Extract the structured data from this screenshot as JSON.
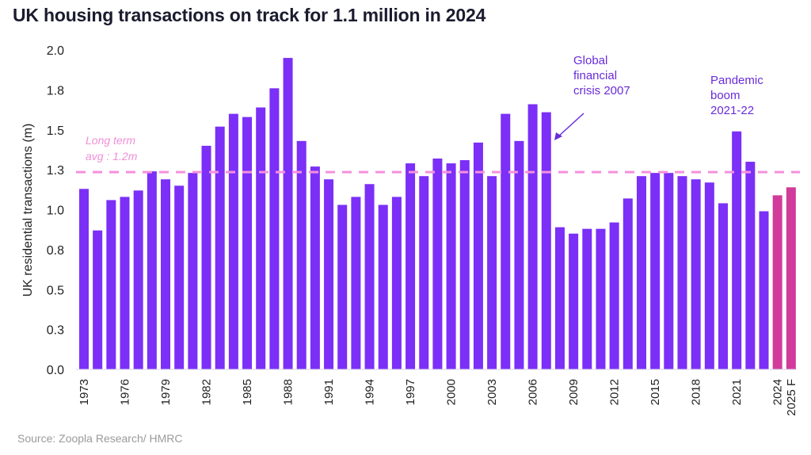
{
  "chart_data": {
    "type": "bar",
    "title": "UK housing transactions on track for 1.1 million in 2024",
    "xlabel": "",
    "ylabel": "UK residential transactions (m)",
    "ylim": [
      0,
      2.0
    ],
    "yticks": [
      0.0,
      0.25,
      0.5,
      0.75,
      1.0,
      1.25,
      1.5,
      1.75,
      2.0
    ],
    "ytick_labels": [
      "0.0",
      "0.3",
      "0.5",
      "0.8",
      "1.0",
      "1.3",
      "1.5",
      "1.8",
      "2.0"
    ],
    "categories": [
      "1973",
      "1974",
      "1975",
      "1976",
      "1977",
      "1978",
      "1979",
      "1980",
      "1981",
      "1982",
      "1983",
      "1984",
      "1985",
      "1986",
      "1987",
      "1988",
      "1989",
      "1990",
      "1991",
      "1992",
      "1993",
      "1994",
      "1995",
      "1996",
      "1997",
      "1998",
      "1999",
      "2000",
      "2001",
      "2002",
      "2003",
      "2004",
      "2005",
      "2006",
      "2007",
      "2008",
      "2009",
      "2010",
      "2011",
      "2012",
      "2013",
      "2014",
      "2015",
      "2016",
      "2017",
      "2018",
      "2019",
      "2020",
      "2021",
      "2022",
      "2023",
      "2024",
      "2025 F"
    ],
    "xtick_labels": [
      "1973",
      "1976",
      "1979",
      "1982",
      "1985",
      "1988",
      "1991",
      "1994",
      "1997",
      "2000",
      "2003",
      "2006",
      "2009",
      "2012",
      "2015",
      "2018",
      "2021",
      "2024",
      "2025 F"
    ],
    "values": [
      1.13,
      0.87,
      1.06,
      1.08,
      1.12,
      1.24,
      1.19,
      1.15,
      1.23,
      1.4,
      1.52,
      1.6,
      1.58,
      1.64,
      1.76,
      1.95,
      1.43,
      1.27,
      1.19,
      1.03,
      1.08,
      1.16,
      1.03,
      1.08,
      1.29,
      1.21,
      1.32,
      1.29,
      1.31,
      1.42,
      1.21,
      1.6,
      1.43,
      1.66,
      1.61,
      0.89,
      0.85,
      0.88,
      0.88,
      0.92,
      1.07,
      1.21,
      1.23,
      1.23,
      1.21,
      1.19,
      1.17,
      1.04,
      1.49,
      1.3,
      0.99,
      1.09,
      1.14
    ],
    "highlighted": [
      "2024",
      "2025 F"
    ],
    "reference_line": {
      "value": 1.2,
      "label_line1": "Long term",
      "label_line2": "avg : 1.2m",
      "style": "dashed"
    },
    "annotations": [
      {
        "lines": [
          "Global",
          "financial",
          "crisis 2007"
        ],
        "target": "2007",
        "arrow": true
      },
      {
        "lines": [
          "Pandemic",
          "boom",
          "2021-22"
        ],
        "target": "2021",
        "arrow": false
      }
    ],
    "grid": false,
    "legend": "none",
    "colors": {
      "bar": "#7b2ff7",
      "highlight": "#d13b9a",
      "avg_line": "#f590dc",
      "annotation": "#6a2bd9"
    }
  },
  "source": "Source: Zoopla Research/ HMRC"
}
